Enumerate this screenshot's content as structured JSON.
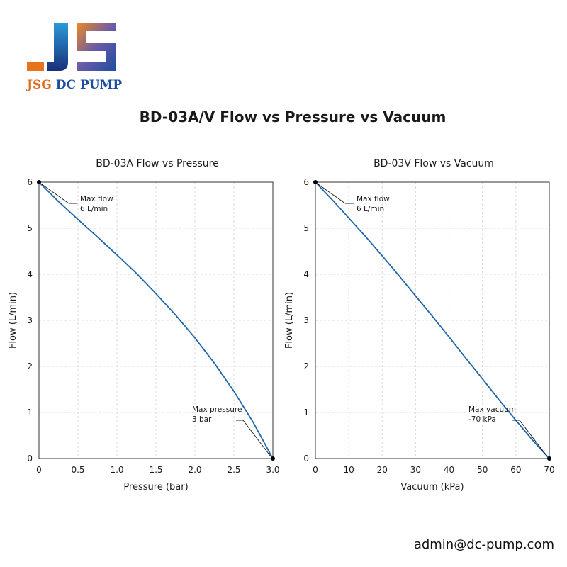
{
  "brand": {
    "name_part1": "JSG ",
    "name_part2": "DC PUMP",
    "logo_icon": "jsg-logo-icon",
    "colors": {
      "orange": "#e8731c",
      "blue": "#1d4e9e",
      "dark_blue": "#1a2f7a"
    }
  },
  "page_title": "BD-03A/V Flow vs Pressure vs Vacuum",
  "contact_email": "admin@dc-pump.com",
  "line_color": "#1f66a8",
  "chart_data": [
    {
      "type": "line",
      "title": "BD-03A Flow vs Pressure",
      "xlabel": "Pressure (bar)",
      "ylabel": "Flow (L/min)",
      "xlim": [
        0,
        3.0
      ],
      "ylim": [
        0,
        6
      ],
      "xticks": [
        "0",
        "0.5",
        "1.0",
        "1.5",
        "2.0",
        "2.5",
        "3.0"
      ],
      "yticks": [
        "0",
        "1",
        "2",
        "3",
        "4",
        "5",
        "6"
      ],
      "grid": true,
      "series": [
        {
          "x": [
            0,
            0.25,
            0.5,
            0.75,
            1.0,
            1.25,
            1.5,
            1.75,
            2.0,
            2.25,
            2.5,
            2.75,
            3.0
          ],
          "y": [
            6.0,
            5.58,
            5.19,
            4.81,
            4.42,
            4.02,
            3.58,
            3.12,
            2.62,
            2.07,
            1.46,
            0.78,
            0.0
          ]
        }
      ],
      "annotations": [
        {
          "lines": [
            "Max flow",
            "6 L/min"
          ],
          "x": 0,
          "y": 6
        },
        {
          "lines": [
            "Max pressure",
            "3 bar"
          ],
          "x": 3.0,
          "y": 0
        }
      ]
    },
    {
      "type": "line",
      "title": "BD-03V Flow vs Vacuum",
      "xlabel": "Vacuum (kPa)",
      "ylabel": "Flow (L/min)",
      "xlim": [
        0,
        70
      ],
      "ylim": [
        0,
        6
      ],
      "xticks": [
        "0",
        "10",
        "20",
        "30",
        "40",
        "50",
        "60",
        "70"
      ],
      "yticks": [
        "0",
        "1",
        "2",
        "3",
        "4",
        "5",
        "6"
      ],
      "grid": true,
      "series": [
        {
          "x": [
            0,
            5,
            10,
            15,
            20,
            25,
            30,
            35,
            40,
            45,
            50,
            55,
            60,
            65,
            70
          ],
          "y": [
            6.0,
            5.62,
            5.22,
            4.82,
            4.4,
            3.97,
            3.53,
            3.09,
            2.64,
            2.18,
            1.73,
            1.27,
            0.83,
            0.4,
            0.0
          ]
        }
      ],
      "annotations": [
        {
          "lines": [
            "Max flow",
            "6  L/min"
          ],
          "x": 0,
          "y": 6
        },
        {
          "lines": [
            "Max vacuum",
            "-70 kPa"
          ],
          "x": 70,
          "y": 0
        }
      ]
    }
  ]
}
